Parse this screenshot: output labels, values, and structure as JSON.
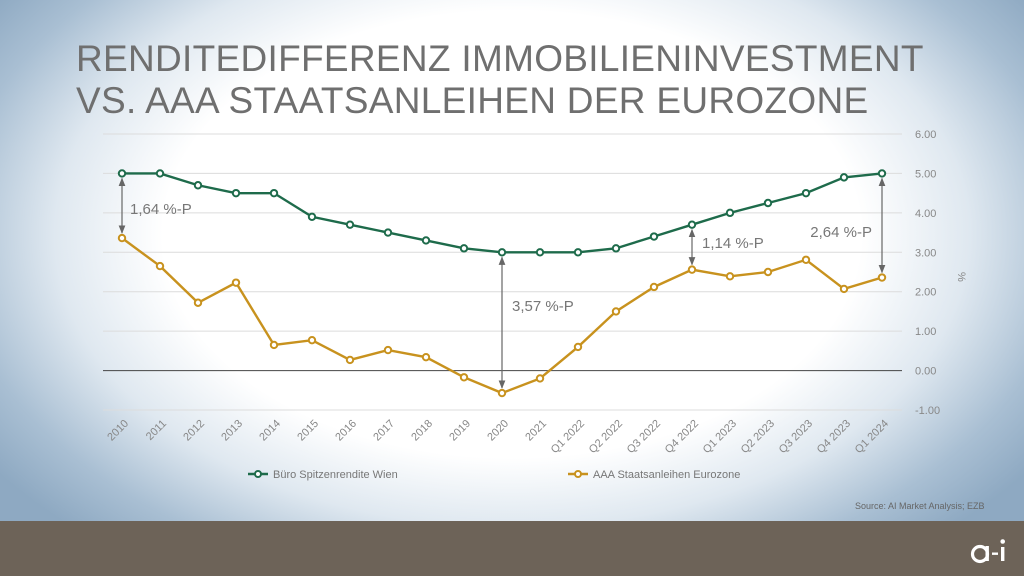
{
  "title": {
    "line1": "RENDITEDIFFERENZ IMMOBILIENINVESTMENT",
    "line2": "VS. AAA STAATSANLEIHEN DER EUROZONE"
  },
  "source": "Source: AI Market Analysis; EZB",
  "logo_text": "a·i",
  "colors": {
    "green": "#1e6b4b",
    "gold": "#c8921e",
    "footer": "#6d6358"
  },
  "chart_data": {
    "type": "line",
    "categories": [
      "2010",
      "2011",
      "2012",
      "2013",
      "2014",
      "2015",
      "2016",
      "2017",
      "2018",
      "2019",
      "2020",
      "2021",
      "Q1 2022",
      "Q2 2022",
      "Q3 2022",
      "Q4 2022",
      "Q1 2023",
      "Q2 2023",
      "Q3 2023",
      "Q4 2023",
      "Q1 2024"
    ],
    "series": [
      {
        "name": "Büro Spitzenrendite Wien",
        "color": "#1e6b4b",
        "values": [
          5.0,
          5.0,
          4.7,
          4.5,
          4.5,
          3.9,
          3.7,
          3.5,
          3.3,
          3.1,
          3.0,
          3.0,
          3.0,
          3.1,
          3.4,
          3.7,
          4.0,
          4.25,
          4.5,
          4.9,
          5.0
        ]
      },
      {
        "name": "AAA Staatsanleihen Eurozone",
        "color": "#c8921e",
        "values": [
          3.36,
          2.65,
          1.72,
          2.23,
          0.65,
          0.77,
          0.27,
          0.52,
          0.34,
          -0.17,
          -0.57,
          -0.2,
          0.6,
          1.5,
          2.12,
          2.56,
          2.39,
          2.5,
          2.81,
          2.07,
          2.36
        ]
      }
    ],
    "ylabel": "%",
    "ylim": [
      -1.0,
      6.0
    ],
    "yticks": [
      "-1.00",
      "0.00",
      "1.00",
      "2.00",
      "3.00",
      "4.00",
      "5.00",
      "6.00"
    ],
    "grid": true,
    "legend_position": "bottom",
    "annotations": [
      {
        "label": "1,64 %-P",
        "category": "2010"
      },
      {
        "label": "3,57 %-P",
        "category": "2020"
      },
      {
        "label": "1,14 %-P",
        "category": "Q4 2022"
      },
      {
        "label": "2,64 %-P",
        "category": "Q1 2024"
      }
    ]
  }
}
